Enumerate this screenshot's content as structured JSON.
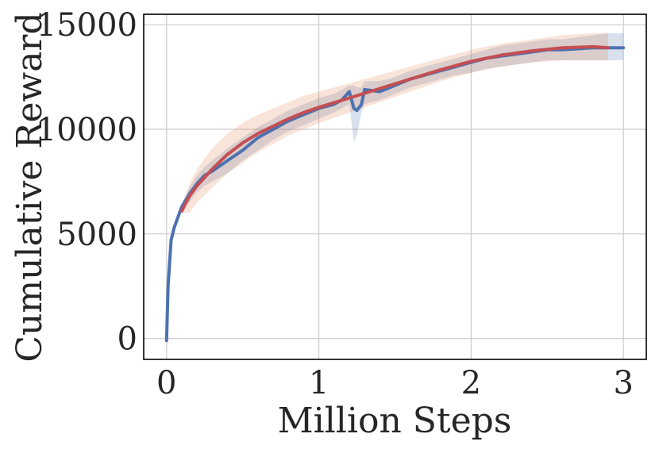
{
  "chart_data": {
    "type": "line",
    "title": "",
    "xlabel": "Million Steps",
    "ylabel": "Cumulative Reward",
    "xlim": [
      -0.15,
      3.15
    ],
    "ylim": [
      -1000,
      15500
    ],
    "xticks": [
      0,
      1,
      2,
      3
    ],
    "yticks": [
      0,
      5000,
      10000,
      15000
    ],
    "grid": true,
    "legend": "none",
    "series": [
      {
        "color": "#4c72b0",
        "band_color": "#4c72b0",
        "x": [
          0,
          0.01,
          0.03,
          0.05,
          0.08,
          0.1,
          0.15,
          0.2,
          0.25,
          0.3,
          0.4,
          0.5,
          0.6,
          0.7,
          0.8,
          0.9,
          1.0,
          1.1,
          1.15,
          1.2,
          1.23,
          1.25,
          1.28,
          1.3,
          1.4,
          1.5,
          1.6,
          1.7,
          1.8,
          1.9,
          2.0,
          2.1,
          2.2,
          2.3,
          2.4,
          2.5,
          2.6,
          2.7,
          2.8,
          2.9,
          3.0
        ],
        "y": [
          -100,
          2500,
          4700,
          5300,
          5900,
          6300,
          6900,
          7400,
          7800,
          8000,
          8500,
          9000,
          9600,
          10000,
          10400,
          10700,
          11000,
          11200,
          11400,
          11800,
          11000,
          10900,
          11200,
          11900,
          11800,
          12100,
          12400,
          12600,
          12800,
          13000,
          13200,
          13400,
          13500,
          13600,
          13700,
          13800,
          13800,
          13850,
          13900,
          13900,
          13900
        ],
        "lower": [
          -100,
          2500,
          4700,
          5300,
          5900,
          6200,
          6500,
          7000,
          7300,
          7500,
          7900,
          8500,
          9000,
          9500,
          9900,
          10200,
          10500,
          10800,
          11000,
          11200,
          9400,
          9700,
          10800,
          11200,
          11400,
          11700,
          12000,
          12200,
          12400,
          12600,
          12700,
          12900,
          13000,
          13100,
          13200,
          13300,
          13300,
          13300,
          13300,
          13300,
          13300
        ],
        "upper": [
          -100,
          2500,
          4700,
          5300,
          5900,
          6400,
          7200,
          7800,
          8200,
          8500,
          9100,
          9600,
          10100,
          10500,
          10900,
          11200,
          11500,
          11700,
          11900,
          12100,
          12100,
          12000,
          12000,
          12300,
          12300,
          12500,
          12800,
          13000,
          13200,
          13400,
          13600,
          13800,
          14000,
          14100,
          14200,
          14300,
          14300,
          14400,
          14500,
          14600,
          14600
        ]
      },
      {
        "color": "#c44e52",
        "band_color": "#dd8452",
        "x": [
          0.1,
          0.15,
          0.2,
          0.3,
          0.4,
          0.5,
          0.6,
          0.7,
          0.8,
          0.9,
          1.0,
          1.2,
          1.4,
          1.6,
          1.8,
          2.0,
          2.2,
          2.4,
          2.6,
          2.8,
          2.9
        ],
        "y": [
          6100,
          6800,
          7300,
          8100,
          8800,
          9350,
          9800,
          10150,
          10500,
          10800,
          11050,
          11500,
          11950,
          12400,
          12850,
          13250,
          13550,
          13750,
          13900,
          13950,
          13900
        ],
        "lower": [
          6000,
          6000,
          6500,
          7200,
          7900,
          8400,
          8900,
          9300,
          9700,
          10000,
          10300,
          10800,
          11300,
          11800,
          12300,
          12700,
          13000,
          13200,
          13300,
          13300,
          13300
        ],
        "upper": [
          6400,
          7400,
          8100,
          9100,
          9800,
          10300,
          10700,
          11000,
          11300,
          11600,
          11800,
          12200,
          12600,
          13000,
          13400,
          13800,
          14100,
          14300,
          14500,
          14600,
          14600
        ]
      }
    ]
  }
}
